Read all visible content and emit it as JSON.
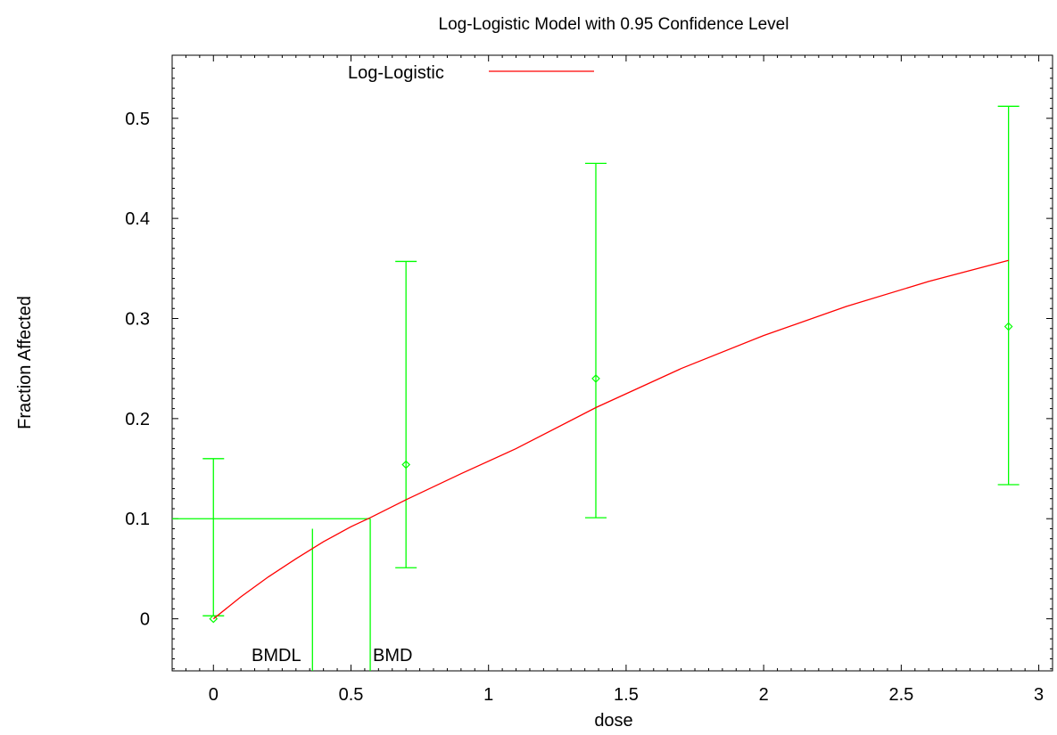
{
  "chart_data": {
    "type": "line",
    "title": "Log-Logistic Model with 0.95 Confidence Level",
    "xlabel": "dose",
    "ylabel": "Fraction Affected",
    "xlim": [
      -0.15,
      3.05
    ],
    "ylim": [
      -0.052,
      0.563
    ],
    "x_ticks": [
      0,
      0.5,
      1,
      1.5,
      2,
      2.5,
      3
    ],
    "x_tick_labels": [
      "0",
      "0.5",
      "1",
      "1.5",
      "2",
      "2.5",
      "3"
    ],
    "y_ticks": [
      0,
      0.1,
      0.2,
      0.3,
      0.4,
      0.5
    ],
    "y_tick_labels": [
      "0",
      "0.1",
      "0.2",
      "0.3",
      "0.4",
      "0.5"
    ],
    "grid": false,
    "legend": {
      "position": "top-center",
      "entries": [
        "Log-Logistic"
      ]
    },
    "colors": {
      "model": "#ff0000",
      "data": "#00ff00",
      "axes": "#000000"
    },
    "series": [
      {
        "name": "Log-Logistic",
        "kind": "curve",
        "x": [
          0,
          0.1,
          0.2,
          0.3,
          0.4,
          0.5,
          0.57,
          0.7,
          0.9,
          1.1,
          1.39,
          1.7,
          2.0,
          2.3,
          2.6,
          2.89
        ],
        "y": [
          0.0,
          0.022,
          0.042,
          0.06,
          0.077,
          0.092,
          0.101,
          0.119,
          0.145,
          0.17,
          0.211,
          0.25,
          0.283,
          0.312,
          0.337,
          0.358
        ]
      },
      {
        "kind": "points_with_error_bars",
        "points": [
          {
            "x": 0.0,
            "y": 0.0,
            "lower": 0.003,
            "upper": 0.16
          },
          {
            "x": 0.7,
            "y": 0.154,
            "lower": 0.051,
            "upper": 0.357
          },
          {
            "x": 1.39,
            "y": 0.24,
            "lower": 0.101,
            "upper": 0.455
          },
          {
            "x": 2.89,
            "y": 0.292,
            "lower": 0.134,
            "upper": 0.512
          }
        ]
      }
    ],
    "bmr_level": 0.1,
    "bmd": 0.57,
    "bmdl": 0.36,
    "bmdl_line_top": 0.09,
    "annotations": [
      "BMDL",
      "BMD"
    ]
  }
}
